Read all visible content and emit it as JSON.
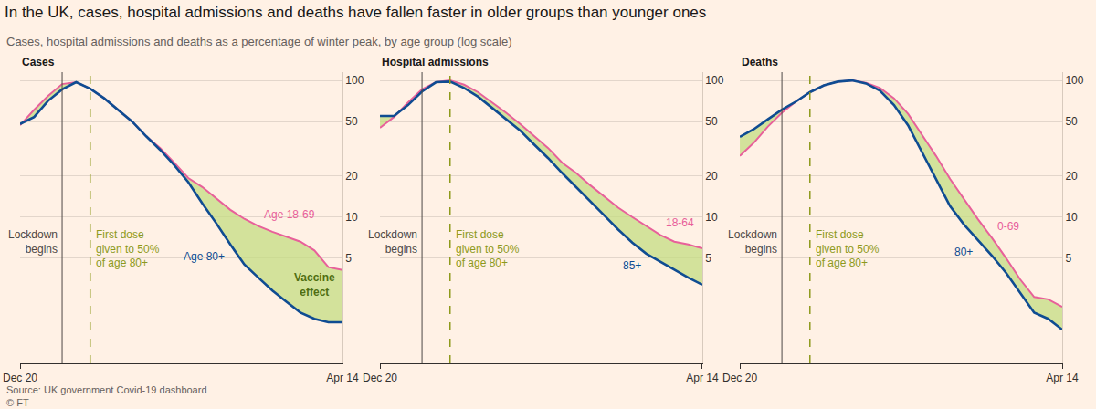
{
  "title": "In the UK, cases, hospital admissions and deaths have fallen faster in older groups than younger ones",
  "subtitle": "Cases, hospital admissions and deaths as a percentage of winter peak, by age group (log scale)",
  "source": "Source: UK government Covid-19 dashboard",
  "credit": "© FT",
  "chart_data": [
    {
      "type": "line",
      "title": "Cases",
      "categories": [
        "Dec 20",
        null,
        null,
        null,
        null,
        null,
        null,
        null,
        null,
        null,
        null,
        null,
        null,
        null,
        null,
        null,
        null,
        null,
        null,
        null,
        null,
        null,
        null,
        "Apr 14"
      ],
      "series": [
        {
          "name": "Age 80+",
          "color": "#0f4c92",
          "values": [
            48,
            54,
            71,
            86,
            97,
            87,
            74,
            61,
            50,
            39,
            31,
            24,
            18,
            12.6,
            9,
            6.3,
            4.5,
            3.6,
            2.9,
            2.4,
            2.0,
            1.8,
            1.7,
            1.7
          ]
        },
        {
          "name": "Age 18-69",
          "color": "#e8609a",
          "values": [
            47,
            61,
            77,
            94,
            97,
            87,
            74,
            61,
            50,
            39,
            32,
            25,
            19.3,
            16.6,
            13.6,
            11.3,
            9.7,
            8.6,
            7.8,
            7.2,
            6.6,
            5.7,
            4.3,
            4.1
          ]
        }
      ],
      "ylim": [
        0.85,
        115
      ],
      "yticks": [
        5,
        10,
        20,
        50,
        100
      ],
      "log": "y",
      "grid": true,
      "annotations": [
        {
          "text": "Lockdown\nbegins",
          "x": 3,
          "line_style": "solid"
        },
        {
          "text": "First dose\ngiven to 50%\nof age 80+",
          "x": 5,
          "line_style": "dashed"
        },
        {
          "text": "Vaccine\neffect"
        }
      ]
    },
    {
      "type": "line",
      "title": "Hospital admissions",
      "categories": [
        "Dec 20",
        null,
        null,
        null,
        null,
        null,
        null,
        null,
        null,
        null,
        null,
        null,
        null,
        null,
        null,
        null,
        null,
        null,
        null,
        null,
        null,
        null,
        null,
        "Apr 14"
      ],
      "series": [
        {
          "name": "85+",
          "color": "#0f4c92",
          "values": [
            55,
            55,
            66,
            83,
            97,
            98,
            88,
            76,
            63,
            52,
            43,
            34,
            27,
            21,
            16.6,
            13.2,
            10.3,
            8.1,
            6.5,
            5.4,
            4.7,
            4.1,
            3.6,
            3.2
          ]
        },
        {
          "name": "18-64",
          "color": "#e8609a",
          "values": [
            45,
            54,
            69,
            86,
            97,
            100,
            93,
            82,
            69,
            58,
            48,
            39,
            32,
            25,
            21,
            17.1,
            14.2,
            11.7,
            10,
            8.6,
            7.4,
            6.6,
            6.3,
            5.9
          ]
        }
      ],
      "ylim": [
        0.85,
        115
      ],
      "yticks": [
        5,
        10,
        20,
        50,
        100
      ],
      "log": "y",
      "grid": true,
      "annotations": [
        {
          "text": "Lockdown\nbegins",
          "x": 3,
          "line_style": "solid"
        },
        {
          "text": "First dose\ngiven to 50%\nof age 80+",
          "x": 5,
          "line_style": "dashed"
        }
      ]
    },
    {
      "type": "line",
      "title": "Deaths",
      "categories": [
        "Dec 20",
        null,
        null,
        null,
        null,
        null,
        null,
        null,
        null,
        null,
        null,
        null,
        null,
        null,
        null,
        null,
        null,
        null,
        null,
        null,
        null,
        null,
        null,
        "Apr 14"
      ],
      "series": [
        {
          "name": "80+",
          "color": "#0f4c92",
          "values": [
            38.6,
            44,
            52,
            61,
            70,
            82,
            92,
            98,
            100,
            95,
            84,
            66,
            47,
            30,
            19,
            12,
            8.8,
            6.8,
            5.2,
            3.9,
            2.8,
            2.0,
            1.8,
            1.5
          ]
        },
        {
          "name": "0-69",
          "color": "#e8609a",
          "values": [
            28,
            35,
            46,
            58,
            70,
            82,
            92,
            98,
            100,
            96,
            88,
            74,
            57,
            40,
            28,
            19,
            13.5,
            9.6,
            7,
            5,
            3.5,
            2.6,
            2.5,
            2.2
          ]
        }
      ],
      "ylim": [
        0.85,
        115
      ],
      "yticks": [
        5,
        10,
        20,
        50,
        100
      ],
      "log": "y",
      "grid": true,
      "annotations": [
        {
          "text": "Lockdown\nbegins",
          "x": 3,
          "line_style": "solid"
        },
        {
          "text": "First dose\ngiven to 50%\nof age 80+",
          "x": 5,
          "line_style": "dashed"
        }
      ]
    }
  ]
}
